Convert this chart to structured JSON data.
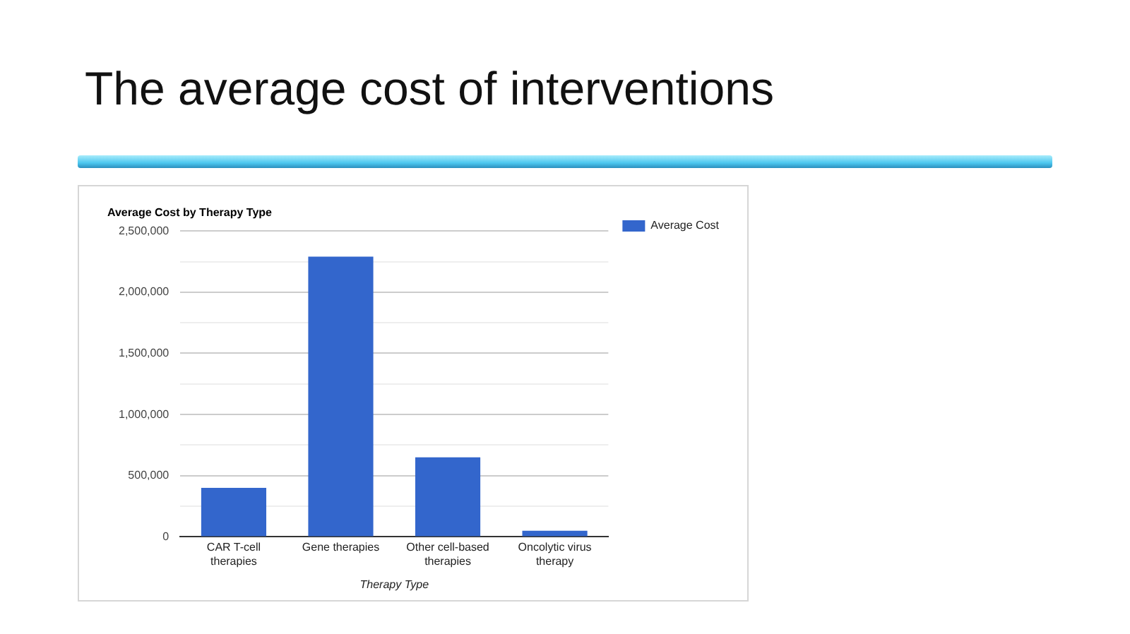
{
  "chart_data": {
    "type": "bar",
    "title": "The average cost of interventions",
    "subtitle": "Average Cost by Therapy Type",
    "xlabel": "Therapy Type",
    "categories": [
      [
        "CAR T-cell",
        "therapies"
      ],
      "Gene therapies",
      [
        "Other cell-based",
        "therapies"
      ],
      [
        "Oncolytic virus",
        "therapy"
      ]
    ],
    "series": [
      {
        "name": "Average Cost",
        "color": "#3366cc",
        "values": [
          400000,
          2290000,
          650000,
          50000
        ]
      }
    ],
    "ylim": [
      0,
      2500000
    ],
    "yticks": [
      0,
      {
        "value": 250000,
        "label": null
      },
      {
        "value": 500000,
        "label": "500,000"
      },
      {
        "value": 750000,
        "label": null
      },
      {
        "value": 1000000,
        "label": "1,000,000"
      },
      {
        "value": 1250000,
        "label": null
      },
      {
        "value": 1500000,
        "label": "1,500,000"
      },
      {
        "value": 1750000,
        "label": null
      },
      {
        "value": 2000000,
        "label": "2,000,000"
      },
      {
        "value": 2250000,
        "label": null
      },
      {
        "value": 2500000,
        "label": "2,500,000"
      }
    ],
    "grid": "y",
    "legend": "top right"
  }
}
